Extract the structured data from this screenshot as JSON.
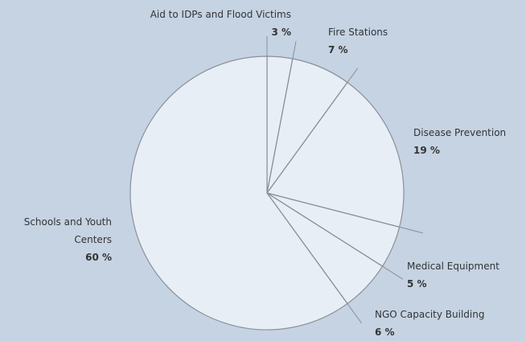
{
  "chart_data": {
    "type": "pie",
    "categories": [
      "Aid to IDPs and Flood Victims",
      "Fire Stations",
      "Disease Prevention",
      "Medical Equipment",
      "NGO Capacity Building",
      "Schools and Youth Centers"
    ],
    "values": [
      3,
      7,
      19,
      5,
      6,
      60
    ],
    "value_labels": [
      "3 %",
      "7 %",
      "19 %",
      "5 %",
      "6 %",
      "60 %"
    ],
    "color": "#e8eef6"
  }
}
